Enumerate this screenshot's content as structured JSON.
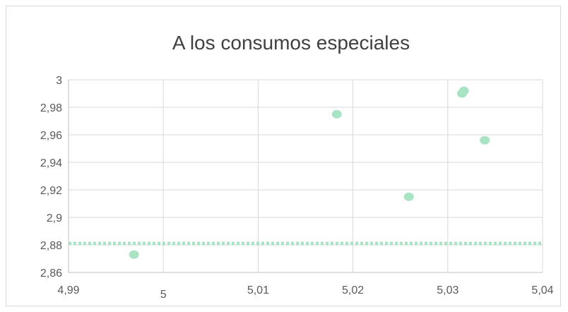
{
  "chart_data": {
    "type": "scatter",
    "title": "A los consumos especiales",
    "xlabel": "",
    "ylabel": "",
    "xlim": [
      4.99,
      5.04
    ],
    "ylim": [
      2.86,
      3.0
    ],
    "xticks": [
      4.99,
      5.0,
      5.01,
      5.02,
      5.03,
      5.04
    ],
    "yticks": [
      2.86,
      2.88,
      2.9,
      2.92,
      2.94,
      2.96,
      2.98,
      3.0
    ],
    "xtick_labels": [
      "4,99",
      "5",
      "5,01",
      "5,02",
      "5,03",
      "5,04"
    ],
    "ytick_labels": [
      "2,86",
      "2,88",
      "2,9",
      "2,92",
      "2,94",
      "2,96",
      "2,98",
      "3"
    ],
    "grid": true,
    "legend": "none",
    "points": [
      {
        "x": 4.9969,
        "y": 2.873
      },
      {
        "x": 5.0183,
        "y": 2.975
      },
      {
        "x": 5.0259,
        "y": 2.915
      },
      {
        "x": 5.0315,
        "y": 2.99
      },
      {
        "x": 5.0317,
        "y": 2.992
      },
      {
        "x": 5.0339,
        "y": 2.956
      }
    ],
    "reference_line": {
      "y": 2.881,
      "style": "dotted"
    },
    "colors": {
      "points": "#a8e4c4",
      "reference_line": "#a8e4c4",
      "grid": "#d9d9d9",
      "axis": "#bfbfbf",
      "text": "#595959",
      "title": "#404040"
    }
  }
}
